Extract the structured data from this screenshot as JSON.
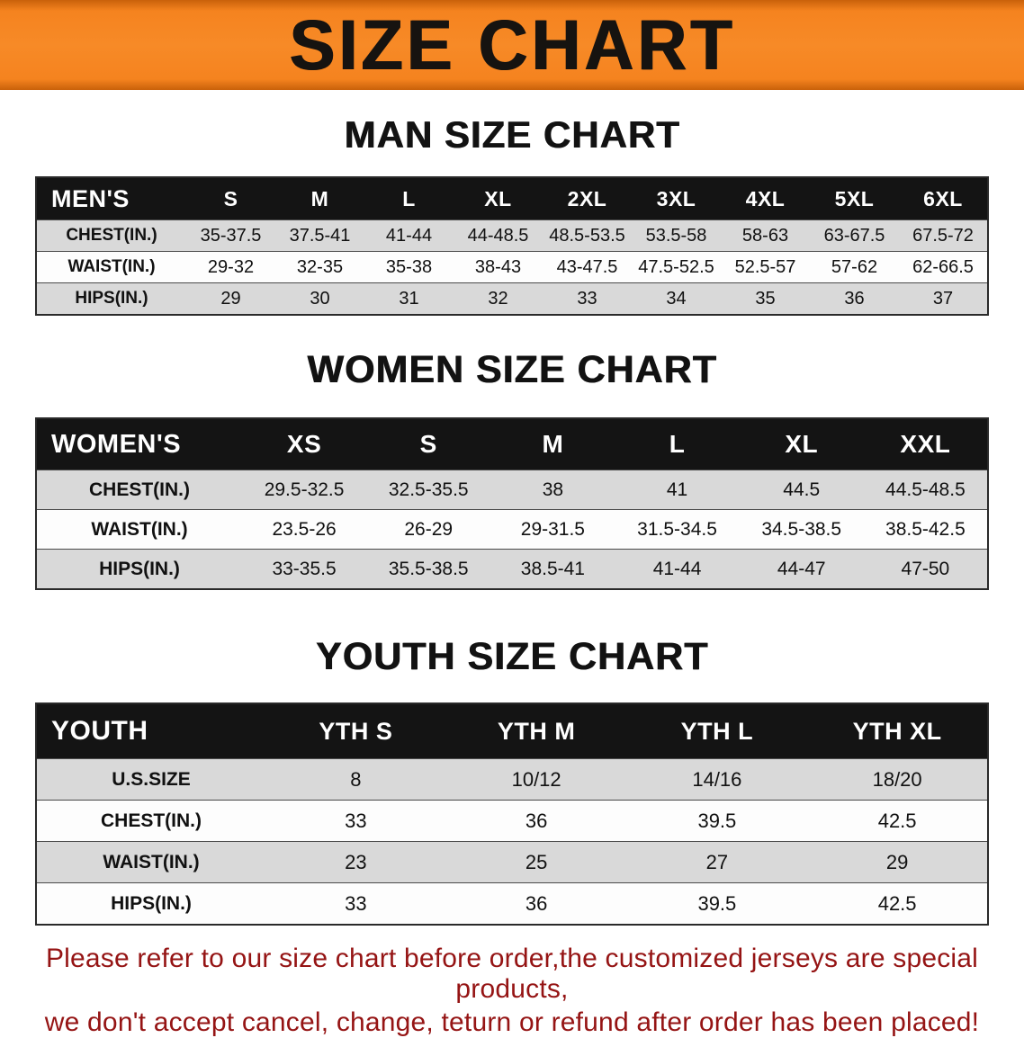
{
  "banner": {
    "title": "SIZE CHART"
  },
  "colors": {
    "banner_orange": "#f5831f",
    "table_header_black": "#141414",
    "row_gray": "#d9d9d9",
    "notice_red": "#951414"
  },
  "sections": [
    {
      "heading": "MAN SIZE CHART",
      "table": {
        "header": [
          "MEN'S",
          "S",
          "M",
          "L",
          "XL",
          "2XL",
          "3XL",
          "4XL",
          "5XL",
          "6XL"
        ],
        "rows": [
          [
            "CHEST(IN.)",
            "35-37.5",
            "37.5-41",
            "41-44",
            "44-48.5",
            "48.5-53.5",
            "53.5-58",
            "58-63",
            "63-67.5",
            "67.5-72"
          ],
          [
            "WAIST(IN.)",
            "29-32",
            "32-35",
            "35-38",
            "38-43",
            "43-47.5",
            "47.5-52.5",
            "52.5-57",
            "57-62",
            "62-66.5"
          ],
          [
            "HIPS(IN.)",
            "29",
            "30",
            "31",
            "32",
            "33",
            "34",
            "35",
            "36",
            "37"
          ]
        ]
      }
    },
    {
      "heading": "WOMEN SIZE CHART",
      "table": {
        "header": [
          "WOMEN'S",
          "XS",
          "S",
          "M",
          "L",
          "XL",
          "XXL"
        ],
        "rows": [
          [
            "CHEST(IN.)",
            "29.5-32.5",
            "32.5-35.5",
            "38",
            "41",
            "44.5",
            "44.5-48.5"
          ],
          [
            "WAIST(IN.)",
            "23.5-26",
            "26-29",
            "29-31.5",
            "31.5-34.5",
            "34.5-38.5",
            "38.5-42.5"
          ],
          [
            "HIPS(IN.)",
            "33-35.5",
            "35.5-38.5",
            "38.5-41",
            "41-44",
            "44-47",
            "47-50"
          ]
        ]
      }
    },
    {
      "heading": "YOUTH SIZE CHART",
      "table": {
        "header": [
          "YOUTH",
          "YTH S",
          "YTH M",
          "YTH L",
          "YTH XL"
        ],
        "rows": [
          [
            "U.S.SIZE",
            "8",
            "10/12",
            "14/16",
            "18/20"
          ],
          [
            "CHEST(IN.)",
            "33",
            "36",
            "39.5",
            "42.5"
          ],
          [
            "WAIST(IN.)",
            "23",
            "25",
            "27",
            "29"
          ],
          [
            "HIPS(IN.)",
            "33",
            "36",
            "39.5",
            "42.5"
          ]
        ]
      }
    }
  ],
  "footer": {
    "line1": "Please refer to our size chart before order,the customized jerseys are special products,",
    "line2": "we don't accept cancel, change, teturn or refund after order has been placed!"
  }
}
